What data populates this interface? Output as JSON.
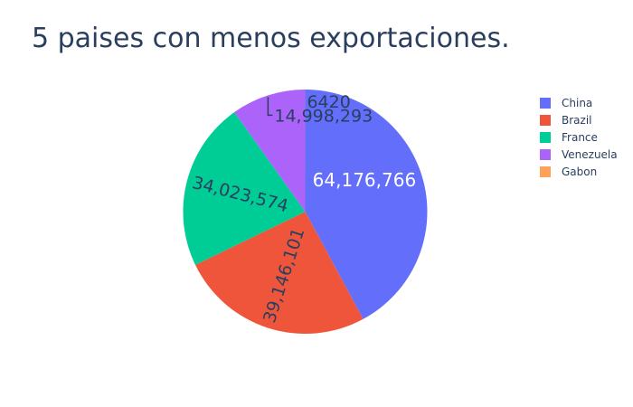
{
  "chart_data": {
    "type": "pie",
    "title": "5 paises con menos exportaciones.",
    "categories": [
      "China",
      "Brazil",
      "France",
      "Venezuela",
      "Gabon"
    ],
    "values": [
      64176766,
      39146101,
      34023574,
      14998293,
      6420
    ],
    "value_labels": [
      "64,176,766",
      "39,146,101",
      "34,023,574",
      "14,998,293",
      "6420"
    ],
    "colors": [
      "#636efa",
      "#EF553B",
      "#00cc96",
      "#ab63fa",
      "#FFA15A"
    ],
    "label_colors": [
      "#ffffff",
      "#2a3f5f",
      "#2a3f5f",
      "#2a3f5f",
      "#2a3f5f"
    ],
    "legend": {
      "placement": "top-right",
      "entries": [
        "China",
        "Brazil",
        "France",
        "Venezuela",
        "Gabon"
      ]
    },
    "direction": "clockwise",
    "sort": "descending"
  }
}
